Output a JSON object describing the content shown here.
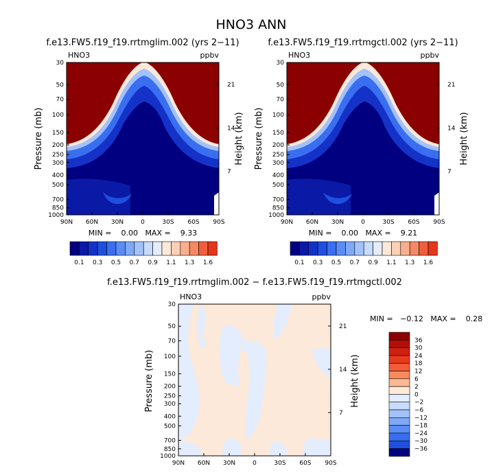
{
  "page_title": "HNO3 ANN",
  "colors": {
    "blue_scale": [
      "#000080",
      "#0a1aa6",
      "#1432c8",
      "#1f4fe0",
      "#3a6ef0",
      "#5b8cf5",
      "#7fa8f7",
      "#a3c2fa",
      "#c7dbfc",
      "#e3edfd"
    ],
    "red_scale": [
      "#fde9d9",
      "#fcd0b4",
      "#f9ae8c",
      "#f58865",
      "#ef5e3d",
      "#e3361c",
      "#c81b0c",
      "#a80a05",
      "#8b0000"
    ]
  },
  "chart_data": [
    {
      "type": "heatmap",
      "title": "f.e13.FW5.f19_f19.rrtmglim.002 (yrs 2−11)",
      "variable": "HNO3",
      "units": "ppbv",
      "ylabel": "Pressure (mb)",
      "y2label": "Height (km)",
      "x_ticks": [
        "90N",
        "60N",
        "30N",
        "0",
        "30S",
        "60S",
        "90S"
      ],
      "y_ticks": [
        "30",
        "50",
        "70",
        "100",
        "150",
        "200",
        "250",
        "300",
        "400",
        "500",
        "700",
        "850",
        "1000"
      ],
      "y2_ticks": [
        "21",
        "14",
        "7"
      ],
      "y_scale": "log",
      "ylim": [
        1000,
        30
      ],
      "xlim": [
        "90N",
        "90S"
      ],
      "stats": "MIN =    0.00   MAX =    9.33",
      "colorbar_labels": [
        "0.1",
        "0.3",
        "0.5",
        "0.7",
        "0.9",
        "1.1",
        "1.3",
        "1.6"
      ],
      "colorbar_position": "bottom"
    },
    {
      "type": "heatmap",
      "title": "f.e13.FW5.f19_f19.rrtmgctl.002 (yrs 2−11)",
      "variable": "HNO3",
      "units": "ppbv",
      "ylabel": "Pressure (mb)",
      "y2label": "Height (km)",
      "x_ticks": [
        "90N",
        "60N",
        "30N",
        "0",
        "30S",
        "60S",
        "90S"
      ],
      "y_ticks": [
        "30",
        "50",
        "70",
        "100",
        "150",
        "200",
        "250",
        "300",
        "400",
        "500",
        "700",
        "850",
        "1000"
      ],
      "y2_ticks": [
        "21",
        "14",
        "7"
      ],
      "y_scale": "log",
      "ylim": [
        1000,
        30
      ],
      "xlim": [
        "90N",
        "90S"
      ],
      "stats": "MIN =    0.00   MAX =    9.21",
      "colorbar_labels": [
        "0.1",
        "0.3",
        "0.5",
        "0.7",
        "0.9",
        "1.1",
        "1.3",
        "1.6"
      ],
      "colorbar_position": "bottom"
    },
    {
      "type": "heatmap",
      "title": "f.e13.FW5.f19_f19.rrtmglim.002 − f.e13.FW5.f19_f19.rrtmgctl.002",
      "variable": "HNO3",
      "units": "ppbv",
      "ylabel": "Pressure (mb)",
      "y2label": "Height (km)",
      "x_ticks": [
        "90N",
        "60N",
        "30N",
        "0",
        "30S",
        "60S",
        "90S"
      ],
      "y_ticks": [
        "30",
        "50",
        "70",
        "100",
        "150",
        "200",
        "250",
        "300",
        "400",
        "500",
        "700",
        "850",
        "1000"
      ],
      "y2_ticks": [
        "21",
        "14",
        "7"
      ],
      "y_scale": "log",
      "ylim": [
        1000,
        30
      ],
      "xlim": [
        "90N",
        "90S"
      ],
      "stats": "MIN =   −0.12   MAX =    0.28",
      "colorbar_labels": [
        "36",
        "30",
        "24",
        "18",
        "12",
        "6",
        "2",
        "0",
        "−2",
        "−6",
        "−12",
        "−18",
        "−24",
        "−30",
        "−36"
      ],
      "colorbar_position": "right"
    }
  ]
}
